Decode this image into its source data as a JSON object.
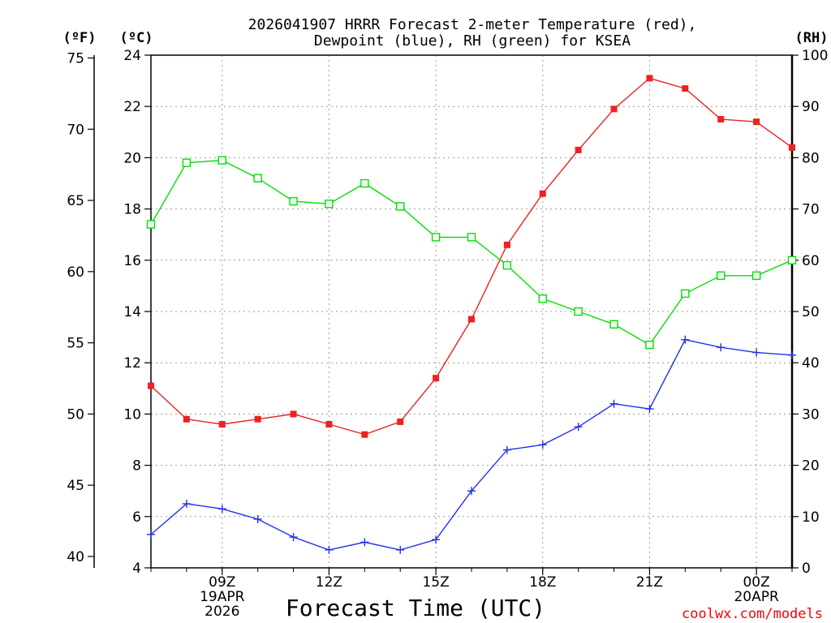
{
  "chart_data": {
    "type": "line",
    "title_lines": [
      "2026041907 HRRR Forecast 2-meter Temperature (red),",
      "Dewpoint (blue), RH (green) for KSEA"
    ],
    "xlabel": "Forecast Time (UTC)",
    "credit": "coolwx.com/models",
    "units": {
      "fahrenheit": "(ºF)",
      "celsius": "(ºC)",
      "rh": "(RH)"
    },
    "x_hours": [
      7,
      8,
      9,
      10,
      11,
      12,
      13,
      14,
      15,
      16,
      17,
      18,
      19,
      20,
      21,
      22,
      23,
      24,
      25
    ],
    "xlim": [
      7,
      25
    ],
    "x_ticks": [
      {
        "hour": 9,
        "lines": [
          "09Z",
          "19APR",
          "2026"
        ]
      },
      {
        "hour": 12,
        "lines": [
          "12Z"
        ]
      },
      {
        "hour": 15,
        "lines": [
          "15Z"
        ]
      },
      {
        "hour": 18,
        "lines": [
          "18Z"
        ]
      },
      {
        "hour": 21,
        "lines": [
          "21Z"
        ]
      },
      {
        "hour": 24,
        "lines": [
          "00Z",
          "20APR"
        ]
      }
    ],
    "celsius_axis": {
      "range": [
        4,
        24
      ],
      "ticks": [
        "4",
        "6",
        "8",
        "10",
        "12",
        "14",
        "16",
        "18",
        "20",
        "22",
        "24"
      ]
    },
    "fahrenheit_axis": {
      "range": [
        39.2,
        75.2
      ],
      "ticks": [
        "40",
        "45",
        "50",
        "55",
        "60",
        "65",
        "70",
        "75"
      ]
    },
    "rh_axis": {
      "range": [
        0,
        100
      ],
      "ticks": [
        "0",
        "10",
        "20",
        "30",
        "40",
        "50",
        "60",
        "70",
        "80",
        "90",
        "100"
      ]
    },
    "series": [
      {
        "name": "2-meter Temperature",
        "unit": "C",
        "axis": "celsius",
        "color": "#ee2020",
        "marker": "filled-square",
        "values": [
          11.1,
          9.8,
          9.6,
          9.8,
          10.0,
          9.6,
          9.2,
          9.7,
          11.4,
          13.7,
          16.6,
          18.6,
          20.3,
          21.9,
          23.1,
          22.7,
          21.5,
          21.4,
          20.4
        ]
      },
      {
        "name": "Dewpoint",
        "unit": "C",
        "axis": "celsius",
        "color": "#2030ee",
        "marker": "plus",
        "values": [
          5.3,
          6.5,
          6.3,
          5.9,
          5.2,
          4.7,
          5.0,
          4.7,
          5.1,
          7.0,
          8.6,
          8.8,
          9.5,
          10.4,
          10.2,
          12.9,
          12.6,
          12.4,
          12.3
        ]
      },
      {
        "name": "Relative Humidity",
        "unit": "%",
        "axis": "rh",
        "color": "#00e000",
        "marker": "open-square",
        "values": [
          67,
          79,
          79.5,
          76,
          71.5,
          71,
          75,
          70.5,
          64.5,
          64.5,
          59,
          52.5,
          50,
          47.5,
          43.5,
          53.5,
          57,
          57,
          60
        ]
      }
    ],
    "grid": true
  }
}
